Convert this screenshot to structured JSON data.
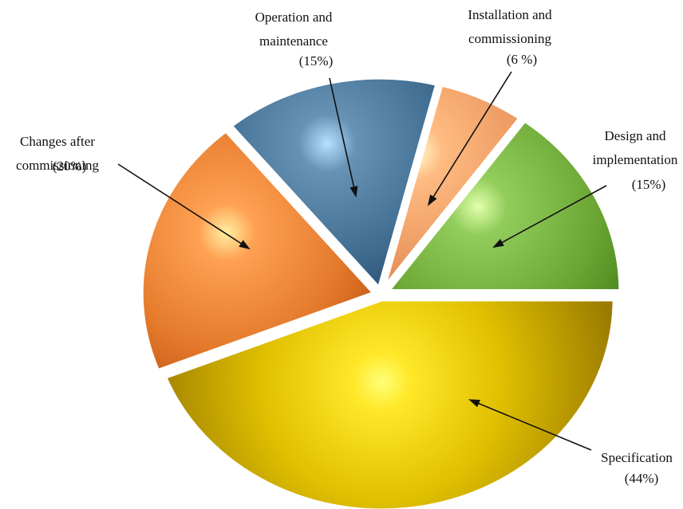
{
  "chart_data": {
    "type": "pie",
    "title": "",
    "slices": [
      {
        "name": "Specification",
        "value": 44,
        "value_label": "(44%)",
        "color": "#E0C000"
      },
      {
        "name": "Changes after commissioning",
        "value": 20,
        "value_label": "(20%)",
        "color": "#E3782A"
      },
      {
        "name": "Operation and maintenance",
        "value": 15,
        "value_label": "(15%)",
        "color": "#3E6A8E"
      },
      {
        "name": "Installation and commissioning",
        "value": 6,
        "value_label": "(6 %)",
        "color": "#E8935A"
      },
      {
        "name": "Design and implementation",
        "value": 15,
        "value_label": "(15%)",
        "color": "#6AA533"
      }
    ],
    "legend": "none",
    "label_style": "callout-arrows"
  }
}
